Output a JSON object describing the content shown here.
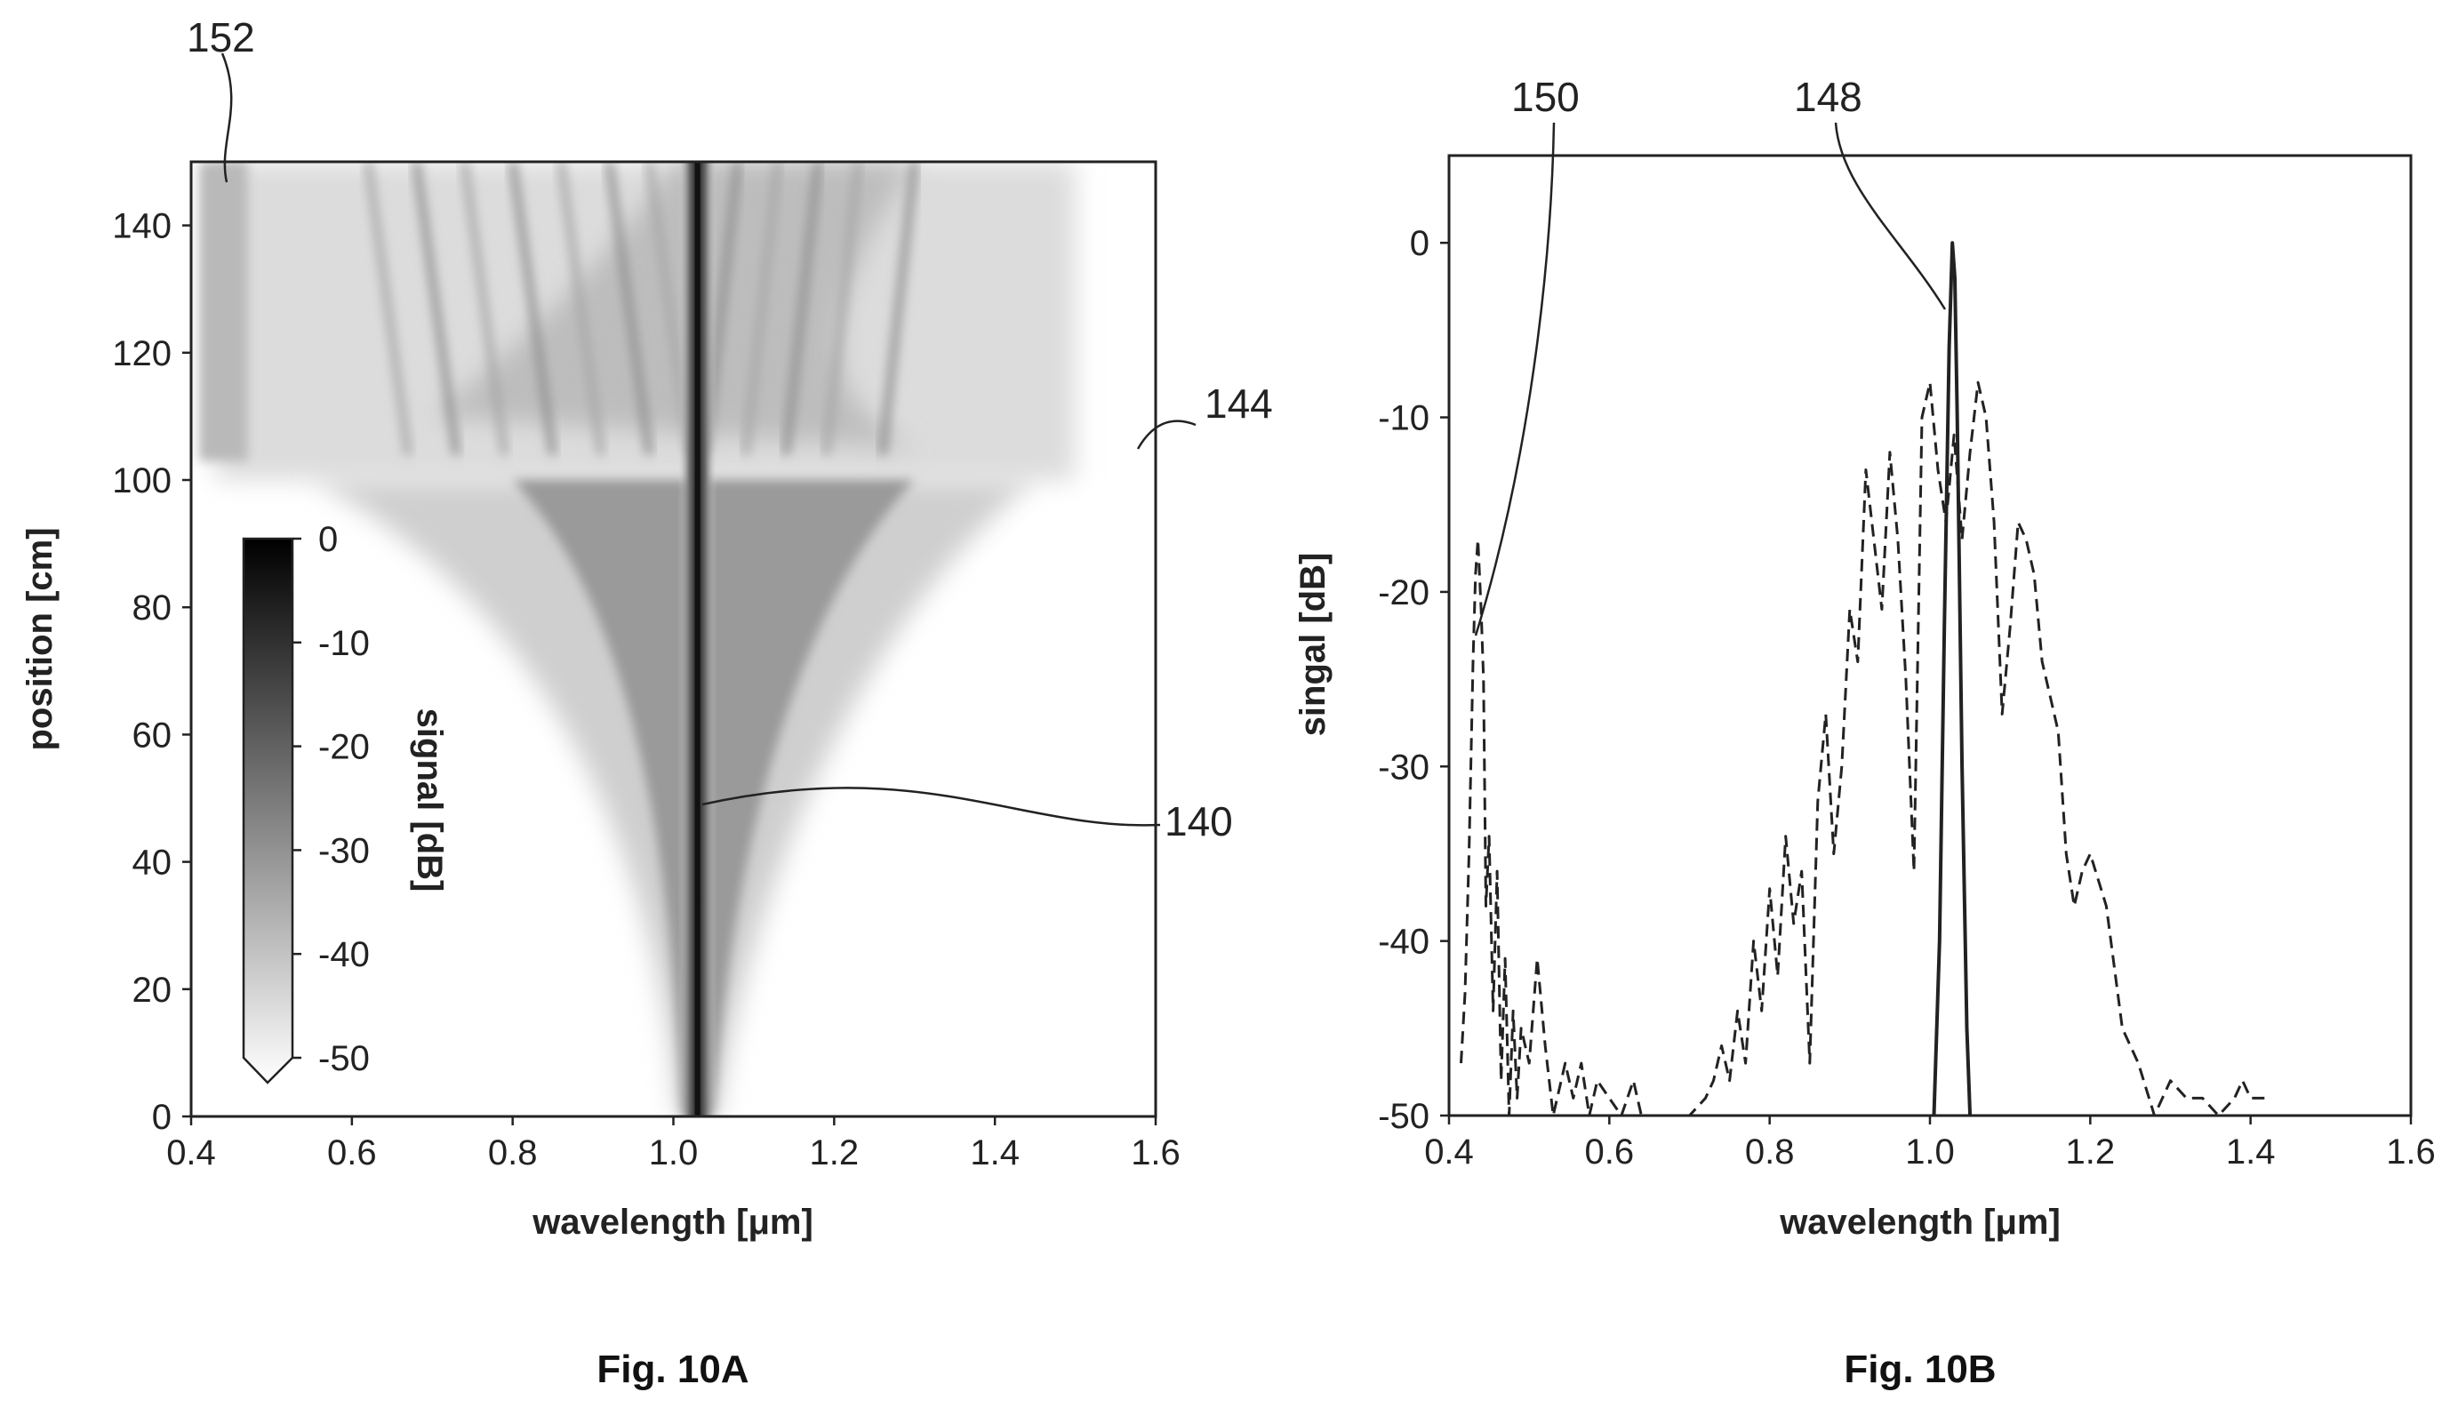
{
  "chart_data": [
    {
      "id": "fig10a",
      "type": "heatmap",
      "caption": "Fig. 10A",
      "xlabel": "wavelength [μm]",
      "ylabel": "position [cm]",
      "xlim": [
        0.4,
        1.6
      ],
      "ylim": [
        0,
        150
      ],
      "xticks": [
        "0.4",
        "0.6",
        "0.8",
        "1.0",
        "1.2",
        "1.4",
        "1.6"
      ],
      "yticks": [
        "0",
        "20",
        "40",
        "60",
        "80",
        "100",
        "120",
        "140"
      ],
      "colorbar": {
        "label": "signal [dB]",
        "range": [
          -50,
          0
        ],
        "ticks": [
          "0",
          "-10",
          "-20",
          "-30",
          "-40",
          "-50"
        ],
        "extend": "min",
        "colors": [
          "#000000",
          "#ffffff"
        ]
      },
      "features": {
        "central_line_um": 1.03,
        "fan_out_start_cm": 100,
        "short_wave_strip_um": [
          0.41,
          0.47
        ],
        "short_wave_strip_cm": [
          103,
          150
        ]
      },
      "callouts": [
        "152",
        "144",
        "140"
      ]
    },
    {
      "id": "fig10b",
      "type": "line",
      "caption": "Fig. 10B",
      "xlabel": "wavelength [μm]",
      "ylabel": "singal [dB]",
      "xlim": [
        0.4,
        1.6
      ],
      "ylim": [
        -50,
        5
      ],
      "xticks": [
        "0.4",
        "0.6",
        "0.8",
        "1.0",
        "1.2",
        "1.4",
        "1.6"
      ],
      "yticks": [
        "0",
        "-10",
        "-20",
        "-30",
        "-40",
        "-50"
      ],
      "series": [
        {
          "style": "solid",
          "x": [
            1.005,
            1.012,
            1.018,
            1.024,
            1.028,
            1.031,
            1.034,
            1.04,
            1.046,
            1.05
          ],
          "y": [
            -50,
            -40,
            -22,
            -6,
            0,
            -2,
            -10,
            -30,
            -45,
            -50
          ]
        },
        {
          "style": "dashed",
          "x": [
            0.415,
            0.42,
            0.425,
            0.43,
            0.433,
            0.436,
            0.44,
            0.443,
            0.446,
            0.45,
            0.455,
            0.46,
            0.465,
            0.47,
            0.475,
            0.48,
            0.485,
            0.49,
            0.5,
            0.51,
            0.52,
            0.53,
            0.545,
            0.555,
            0.565,
            0.575,
            0.585,
            0.6,
            0.615,
            0.63,
            0.64,
            0.7,
            0.72,
            0.73,
            0.74,
            0.75,
            0.76,
            0.77,
            0.78,
            0.79,
            0.8,
            0.81,
            0.82,
            0.83,
            0.84,
            0.85,
            0.86,
            0.87,
            0.88,
            0.89,
            0.9,
            0.91,
            0.92,
            0.93,
            0.94,
            0.95,
            0.96,
            0.97,
            0.98,
            0.99,
            1.0,
            1.01,
            1.02,
            1.03,
            1.04,
            1.05,
            1.06,
            1.07,
            1.08,
            1.09,
            1.1,
            1.11,
            1.12,
            1.13,
            1.14,
            1.15,
            1.16,
            1.17,
            1.18,
            1.19,
            1.2,
            1.22,
            1.24,
            1.26,
            1.28,
            1.3,
            1.32,
            1.34,
            1.36,
            1.38,
            1.39,
            1.4,
            1.41,
            1.42
          ],
          "y": [
            -47,
            -43,
            -35,
            -24,
            -19,
            -17,
            -21,
            -25,
            -38,
            -34,
            -44,
            -36,
            -48,
            -41,
            -50,
            -44,
            -49,
            -45,
            -47,
            -41,
            -46,
            -50,
            -47,
            -49,
            -47,
            -50,
            -48,
            -49,
            -50,
            -48,
            -50,
            -50,
            -49,
            -48,
            -46,
            -48,
            -44,
            -47,
            -40,
            -44,
            -37,
            -42,
            -34,
            -39,
            -36,
            -47,
            -32,
            -27,
            -35,
            -30,
            -21,
            -24,
            -13,
            -17,
            -21,
            -12,
            -17,
            -25,
            -36,
            -10,
            -8,
            -13,
            -16,
            -11,
            -17,
            -12,
            -8,
            -10,
            -16,
            -27,
            -22,
            -16,
            -17,
            -19,
            -24,
            -26,
            -28,
            -35,
            -38,
            -36,
            -35,
            -38,
            -45,
            -47,
            -50,
            -48,
            -49,
            -49,
            -50,
            -49,
            -48,
            -49,
            -49,
            -49
          ]
        }
      ],
      "callouts": [
        "150",
        "148"
      ]
    }
  ]
}
